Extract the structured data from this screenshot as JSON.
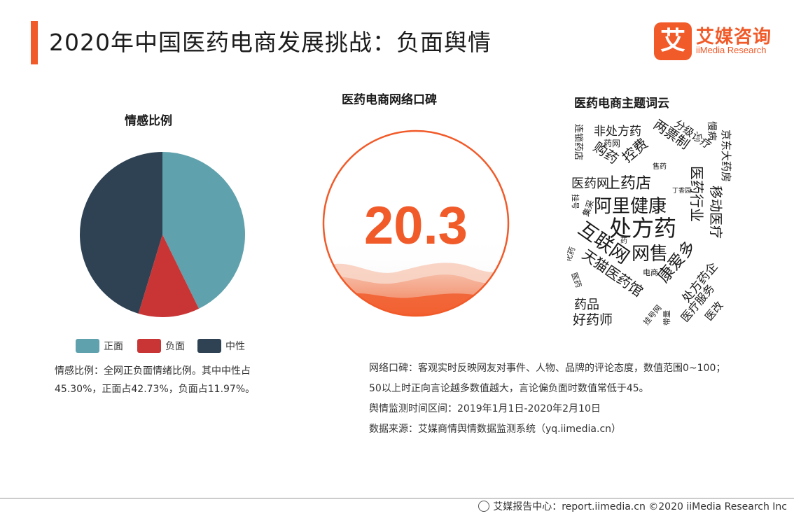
{
  "header": {
    "title": "2020年中国医药电商发展挑战：负面舆情"
  },
  "logo": {
    "mark": "艾",
    "cn": "艾媒咨询",
    "en": "iiMedia Research"
  },
  "colors": {
    "accent": "#f15a29",
    "positive": "#5fa1ac",
    "negative": "#c93535",
    "neutral": "#2e4254"
  },
  "pie_section": {
    "title": "情感比例",
    "note": "情感比例：全网正负面情绪比例。其中中性占45.30%，正面占42.73%，负面占11.97%。"
  },
  "reputation": {
    "title": "医药电商网络口碑",
    "score": "20.3"
  },
  "wordcloud": {
    "title": "医药电商主题词云",
    "words": [
      "非处方药",
      "药网",
      "两票制",
      "分级诊疗",
      "慢病",
      "京东大药房",
      "连锁药店",
      "购药",
      "控费",
      "售药",
      "医药行业",
      "医药网",
      "上药店",
      "丁香园",
      "阿里健康",
      "挂号",
      "集采",
      "移动医疗",
      "处方药",
      "互联网",
      "网售",
      "药",
      "化药",
      "天猫医药馆",
      "电商",
      "康爱多",
      "处方药企",
      "医药",
      "药品",
      "挂号网",
      "带量",
      "医疗服务",
      "医改",
      "好药师"
    ]
  },
  "notes": [
    "网络口碑：客观实时反映网友对事件、人物、品牌的评论态度，数值范围0~100；",
    "50以上时正向言论越多数值越大，言论偏负面时数值常低于45。",
    "舆情监测时间区间：2019年1月1日-2020年2月10日",
    "数据来源：艾媒商情舆情数据监测系统（yq.iimedia.cn）"
  ],
  "footer": {
    "text": "艾媒报告中心：report.iimedia.cn  ©2020  iiMedia Research  Inc"
  },
  "chart_data": {
    "type": "pie",
    "title": "情感比例",
    "categories": [
      "正面",
      "负面",
      "中性"
    ],
    "values": [
      42.73,
      11.97,
      45.3
    ],
    "colors": [
      "#5fa1ac",
      "#c93535",
      "#2e4254"
    ],
    "legend": "bottom"
  }
}
